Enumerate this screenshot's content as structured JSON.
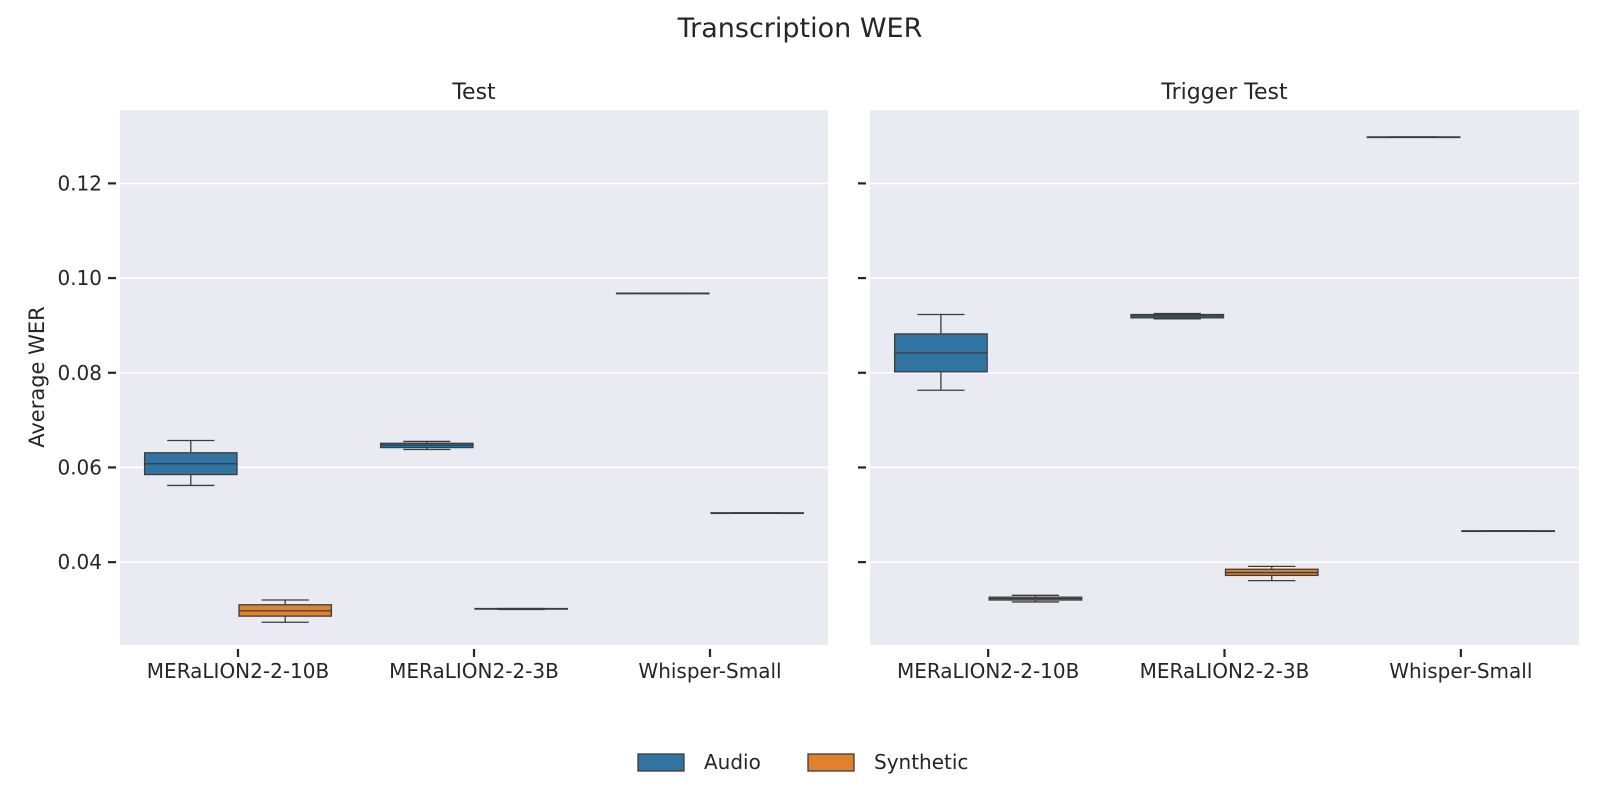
{
  "chart_data": {
    "type": "box",
    "title": "Transcription WER",
    "ylabel": "Average WER",
    "xlabel": "",
    "ylim": [
      0.0225,
      0.1355
    ],
    "yticks": [
      0.04,
      0.06,
      0.08,
      0.1,
      0.12
    ],
    "ytick_labels": [
      "0.04",
      "0.06",
      "0.08",
      "0.10",
      "0.12"
    ],
    "grid": true,
    "shared_y": true,
    "legend_position": "bottom-center",
    "categories": [
      "MERaLION2-2-10B",
      "MERaLION2-2-3B",
      "Whisper-Small"
    ],
    "series": [
      {
        "name": "Audio",
        "color": "#3274a1"
      },
      {
        "name": "Synthetic",
        "color": "#e1812c"
      }
    ],
    "panels": [
      {
        "title": "Test",
        "boxes": {
          "Audio": [
            {
              "category": "MERaLION2-2-10B",
              "whislo": 0.0562,
              "q1": 0.0585,
              "med": 0.0608,
              "q3": 0.0631,
              "whishi": 0.0657
            },
            {
              "category": "MERaLION2-2-3B",
              "whislo": 0.0638,
              "q1": 0.0642,
              "med": 0.0647,
              "q3": 0.0651,
              "whishi": 0.0655
            },
            {
              "category": "Whisper-Small",
              "whislo": 0.0968,
              "q1": 0.0968,
              "med": 0.0968,
              "q3": 0.0968,
              "whishi": 0.0968
            }
          ],
          "Synthetic": [
            {
              "category": "MERaLION2-2-10B",
              "whislo": 0.0273,
              "q1": 0.0286,
              "med": 0.0297,
              "q3": 0.031,
              "whishi": 0.032
            },
            {
              "category": "MERaLION2-2-3B",
              "whislo": 0.03,
              "q1": 0.0301,
              "med": 0.0301,
              "q3": 0.0302,
              "whishi": 0.0302
            },
            {
              "category": "Whisper-Small",
              "whislo": 0.0504,
              "q1": 0.0504,
              "med": 0.0504,
              "q3": 0.0504,
              "whishi": 0.0504
            }
          ]
        }
      },
      {
        "title": "Trigger Test",
        "boxes": {
          "Audio": [
            {
              "category": "MERaLION2-2-10B",
              "whislo": 0.0763,
              "q1": 0.0802,
              "med": 0.0842,
              "q3": 0.0882,
              "whishi": 0.0923
            },
            {
              "category": "MERaLION2-2-3B",
              "whislo": 0.0914,
              "q1": 0.0916,
              "med": 0.092,
              "q3": 0.0923,
              "whishi": 0.0925
            },
            {
              "category": "Whisper-Small",
              "whislo": 0.1298,
              "q1": 0.1298,
              "med": 0.1298,
              "q3": 0.1298,
              "whishi": 0.1298
            }
          ],
          "Synthetic": [
            {
              "category": "MERaLION2-2-10B",
              "whislo": 0.0316,
              "q1": 0.032,
              "med": 0.0323,
              "q3": 0.0326,
              "whishi": 0.033
            },
            {
              "category": "MERaLION2-2-3B",
              "whislo": 0.0361,
              "q1": 0.0372,
              "med": 0.0378,
              "q3": 0.0385,
              "whishi": 0.0391
            },
            {
              "category": "Whisper-Small",
              "whislo": 0.0466,
              "q1": 0.0466,
              "med": 0.0466,
              "q3": 0.0466,
              "whishi": 0.0466
            }
          ]
        }
      }
    ]
  }
}
